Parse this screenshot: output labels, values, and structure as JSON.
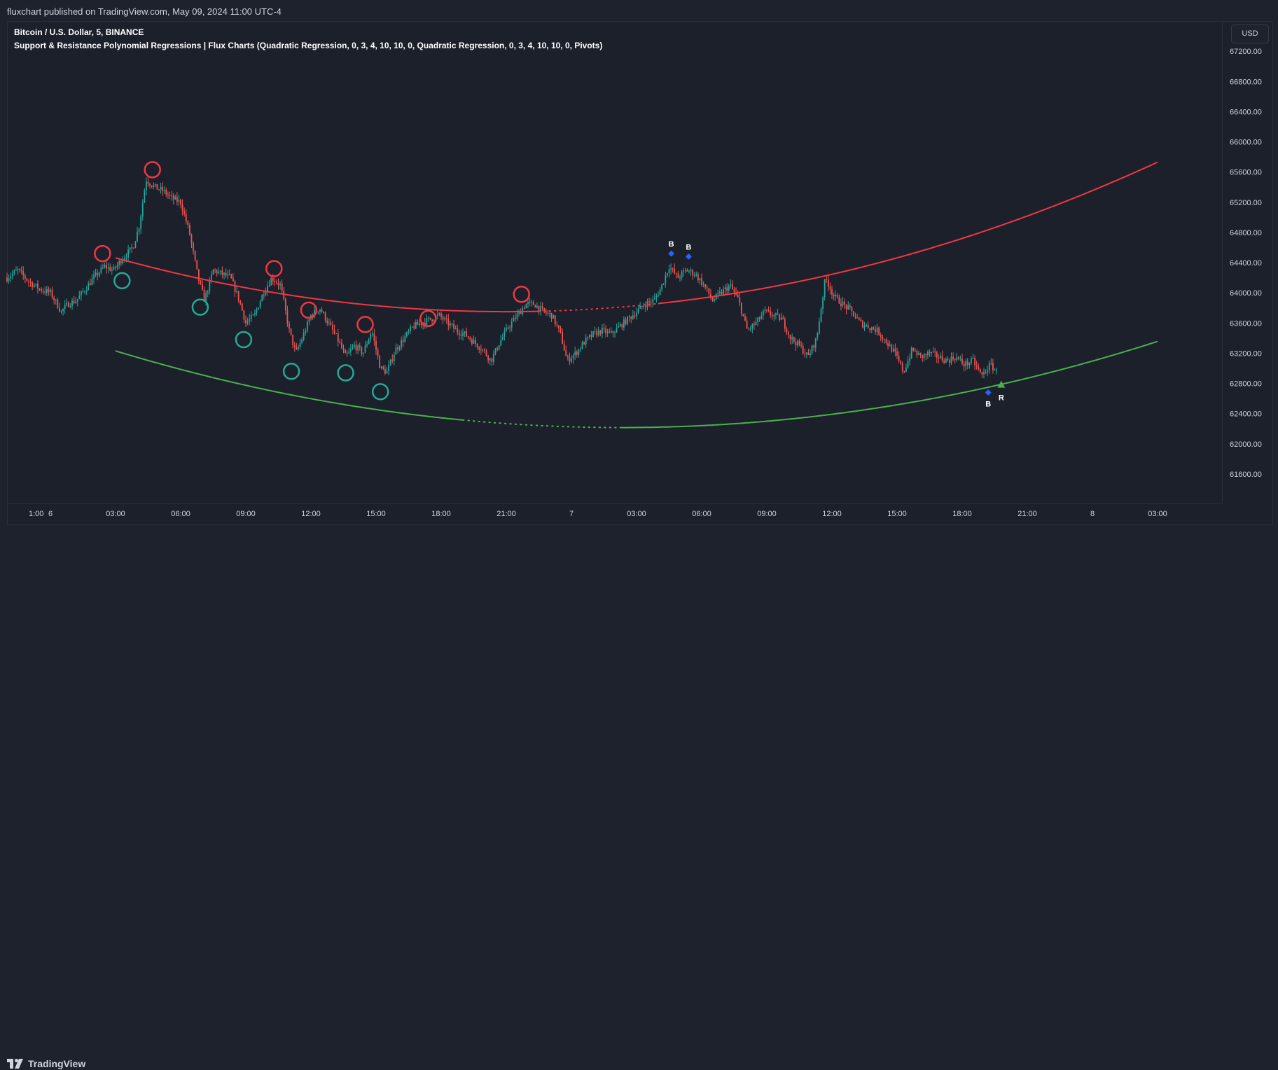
{
  "header": {
    "published": "fluxchart published on TradingView.com, May 09, 2024 11:00 UTC-4"
  },
  "legend": {
    "symbol": "Bitcoin / U.S. Dollar, 5, BINANCE",
    "indicator": "Support & Resistance Polynomial Regressions | Flux Charts (Quadratic Regression, 0, 3, 4, 10, 10, 0, Quadratic Regression, 0, 3, 4, 10, 10, 0, Pivots)"
  },
  "currency_button": "USD",
  "footer": {
    "brand": "TradingView"
  },
  "colors": {
    "background": "#1c202b",
    "up": "#26a69a",
    "down": "#ef5350",
    "resistance": "#f23645",
    "support": "#4caf50",
    "pivot_high": "#f23645",
    "pivot_low": "#22ab94",
    "break_marker": "#2962ff",
    "retest_marker": "#4caf50"
  },
  "chart_data": {
    "type": "line",
    "symbol": "BTCUSD",
    "timeframe": "5",
    "y_range": [
      61200,
      67600
    ],
    "y_ticks": [
      "67200.00",
      "66800.00",
      "66400.00",
      "66000.00",
      "65600.00",
      "65200.00",
      "64800.00",
      "64400.00",
      "64000.00",
      "63600.00",
      "63200.00",
      "62800.00",
      "62400.00",
      "62000.00",
      "61600.00"
    ],
    "x_ticks": [
      "1:00",
      "6",
      "03:00",
      "06:00",
      "09:00",
      "12:00",
      "15:00",
      "18:00",
      "21:00",
      "7",
      "03:00",
      "06:00",
      "09:00",
      "12:00",
      "15:00",
      "18:00",
      "21:00",
      "8",
      "03:00"
    ],
    "x_tick_hours": [
      -1,
      0,
      3,
      6,
      9,
      12,
      15,
      18,
      21,
      24,
      27,
      30,
      33,
      36,
      39,
      42,
      45,
      48,
      51
    ],
    "x_range_hours": [
      -2,
      53
    ],
    "price_path": [
      [
        -2.0,
        64200
      ],
      [
        -1.5,
        64300
      ],
      [
        -1.0,
        64150
      ],
      [
        -0.5,
        64050
      ],
      [
        0.0,
        64000
      ],
      [
        0.5,
        63750
      ],
      [
        0.8,
        63850
      ],
      [
        1.2,
        63900
      ],
      [
        1.6,
        64050
      ],
      [
        2.0,
        64200
      ],
      [
        2.5,
        64350
      ],
      [
        2.9,
        64300
      ],
      [
        3.3,
        64450
      ],
      [
        3.8,
        64600
      ],
      [
        4.1,
        64900
      ],
      [
        4.4,
        65500
      ],
      [
        4.8,
        65400
      ],
      [
        5.2,
        65350
      ],
      [
        5.6,
        65250
      ],
      [
        6.0,
        65200
      ],
      [
        6.4,
        64800
      ],
      [
        6.8,
        64200
      ],
      [
        7.1,
        63900
      ],
      [
        7.5,
        64300
      ],
      [
        7.9,
        64250
      ],
      [
        8.3,
        64200
      ],
      [
        8.7,
        63900
      ],
      [
        9.0,
        63600
      ],
      [
        9.4,
        63700
      ],
      [
        9.8,
        64000
      ],
      [
        10.2,
        64200
      ],
      [
        10.6,
        64100
      ],
      [
        11.0,
        63500
      ],
      [
        11.3,
        63200
      ],
      [
        11.6,
        63400
      ],
      [
        12.0,
        63700
      ],
      [
        12.4,
        63800
      ],
      [
        12.8,
        63600
      ],
      [
        13.2,
        63400
      ],
      [
        13.6,
        63150
      ],
      [
        14.0,
        63300
      ],
      [
        14.4,
        63200
      ],
      [
        14.8,
        63500
      ],
      [
        15.2,
        63000
      ],
      [
        15.5,
        62950
      ],
      [
        15.9,
        63250
      ],
      [
        16.3,
        63400
      ],
      [
        16.7,
        63550
      ],
      [
        17.1,
        63600
      ],
      [
        17.5,
        63650
      ],
      [
        17.9,
        63700
      ],
      [
        18.3,
        63600
      ],
      [
        18.7,
        63500
      ],
      [
        19.1,
        63450
      ],
      [
        19.5,
        63350
      ],
      [
        19.9,
        63250
      ],
      [
        20.3,
        63100
      ],
      [
        20.7,
        63350
      ],
      [
        21.1,
        63550
      ],
      [
        21.5,
        63700
      ],
      [
        21.9,
        63850
      ],
      [
        22.3,
        63850
      ],
      [
        22.7,
        63750
      ],
      [
        23.1,
        63700
      ],
      [
        23.5,
        63450
      ],
      [
        23.8,
        63100
      ],
      [
        24.2,
        63200
      ],
      [
        24.6,
        63350
      ],
      [
        25.0,
        63450
      ],
      [
        25.4,
        63500
      ],
      [
        25.8,
        63450
      ],
      [
        26.2,
        63550
      ],
      [
        26.6,
        63650
      ],
      [
        27.0,
        63750
      ],
      [
        27.4,
        63850
      ],
      [
        27.8,
        63900
      ],
      [
        28.1,
        64050
      ],
      [
        28.5,
        64350
      ],
      [
        28.9,
        64200
      ],
      [
        29.3,
        64300
      ],
      [
        29.7,
        64250
      ],
      [
        30.1,
        64100
      ],
      [
        30.5,
        63900
      ],
      [
        30.9,
        64000
      ],
      [
        31.3,
        64100
      ],
      [
        31.7,
        63900
      ],
      [
        32.1,
        63500
      ],
      [
        32.5,
        63600
      ],
      [
        32.9,
        63750
      ],
      [
        33.3,
        63700
      ],
      [
        33.7,
        63650
      ],
      [
        34.1,
        63400
      ],
      [
        34.5,
        63300
      ],
      [
        34.9,
        63150
      ],
      [
        35.3,
        63400
      ],
      [
        35.7,
        64200
      ],
      [
        36.1,
        63950
      ],
      [
        36.5,
        63850
      ],
      [
        36.9,
        63750
      ],
      [
        37.3,
        63600
      ],
      [
        37.7,
        63550
      ],
      [
        38.1,
        63500
      ],
      [
        38.5,
        63350
      ],
      [
        38.9,
        63200
      ],
      [
        39.3,
        62950
      ],
      [
        39.7,
        63250
      ],
      [
        40.1,
        63150
      ],
      [
        40.5,
        63200
      ],
      [
        40.9,
        63150
      ],
      [
        41.3,
        63100
      ],
      [
        41.7,
        63150
      ],
      [
        42.1,
        63050
      ],
      [
        42.5,
        63100
      ],
      [
        42.9,
        62900
      ],
      [
        43.3,
        63050
      ],
      [
        43.6,
        62950
      ]
    ],
    "support_regression": {
      "equation": "price = 62215 + 1.87*(h-26.3)^2",
      "x_solid": [
        [
          3,
          19
        ],
        [
          26.3,
          44
        ]
      ],
      "x_dotted": [
        19,
        26.3
      ],
      "x_end": 51
    },
    "resistance_regression": {
      "equation": "price = 63750 + 2.20*(h-21)^2",
      "x_solid": [
        [
          3,
          22.5
        ],
        [
          28,
          51
        ]
      ],
      "x_dotted": [
        22.5,
        28
      ]
    },
    "pivot_highs": [
      [
        2.4,
        64520
      ],
      [
        4.7,
        65630
      ],
      [
        10.3,
        64320
      ],
      [
        11.9,
        63770
      ],
      [
        14.5,
        63580
      ],
      [
        17.4,
        63660
      ],
      [
        21.7,
        63980
      ]
    ],
    "pivot_lows": [
      [
        3.3,
        64160
      ],
      [
        6.9,
        63810
      ],
      [
        8.9,
        63380
      ],
      [
        11.1,
        62960
      ],
      [
        13.6,
        62940
      ],
      [
        15.2,
        62690
      ]
    ],
    "markers": [
      {
        "type": "break",
        "label": "B",
        "x": 28.6,
        "y": 64520,
        "position": "above"
      },
      {
        "type": "break",
        "label": "B",
        "x": 29.4,
        "y": 64480,
        "position": "above"
      },
      {
        "type": "break",
        "label": "B",
        "x": 43.2,
        "y": 62680,
        "position": "below"
      },
      {
        "type": "retest",
        "label": "R",
        "x": 43.8,
        "y": 62780,
        "position": "below"
      }
    ]
  }
}
